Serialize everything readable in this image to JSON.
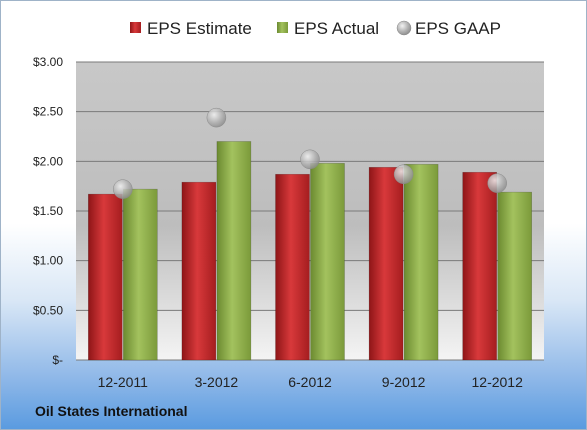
{
  "company_label": "Oil States International",
  "chart_data": {
    "type": "bar",
    "categories": [
      "12-2011",
      "3-2012",
      "6-2012",
      "9-2012",
      "12-2012"
    ],
    "series": [
      {
        "name": "EPS Estimate",
        "kind": "bar",
        "color": "#c0282a",
        "values": [
          1.67,
          1.79,
          1.87,
          1.94,
          1.89
        ]
      },
      {
        "name": "EPS Actual",
        "kind": "bar",
        "color": "#8db04a",
        "values": [
          1.72,
          2.2,
          1.98,
          1.97,
          1.69
        ]
      },
      {
        "name": "EPS GAAP",
        "kind": "marker",
        "color": "#a8a8a8",
        "values": [
          1.72,
          2.44,
          2.02,
          1.87,
          1.78
        ]
      }
    ],
    "ylim": [
      0,
      3.0
    ],
    "yticks": [
      0,
      0.5,
      1.0,
      1.5,
      2.0,
      2.5,
      3.0
    ],
    "ytick_labels": [
      "$-",
      "$0.50",
      "$1.00",
      "$1.50",
      "$2.00",
      "$2.50",
      "$3.00"
    ],
    "grid": true,
    "legend": "top"
  }
}
